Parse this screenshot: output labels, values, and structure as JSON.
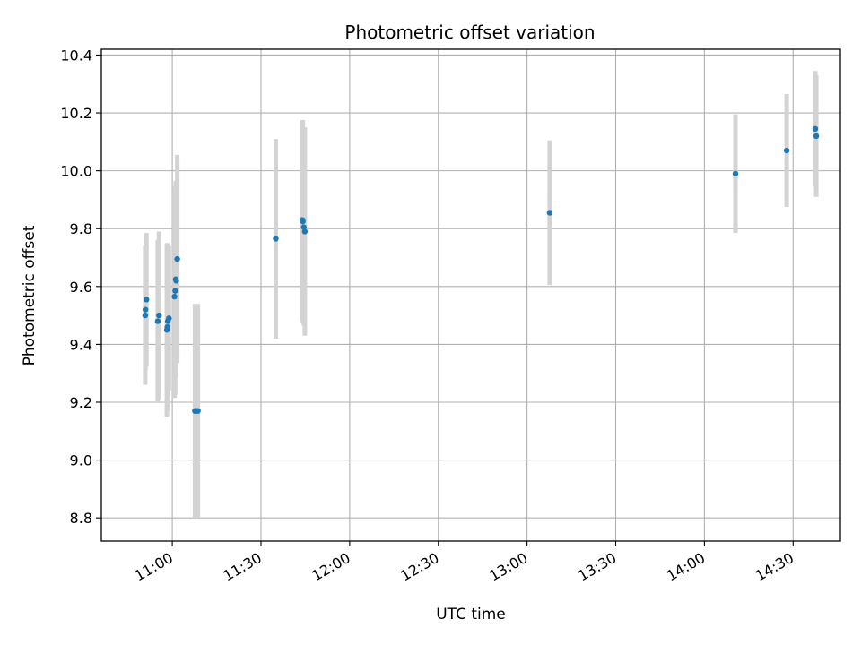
{
  "chart_data": {
    "type": "scatter",
    "title": "Photometric offset variation",
    "xlabel": "UTC time",
    "ylabel": "Photometric offset",
    "grid": true,
    "xlim": [
      "10:36",
      "14:46"
    ],
    "ylim": [
      8.72,
      10.42
    ],
    "x_ticks": [
      "11:00",
      "11:30",
      "12:00",
      "12:30",
      "13:00",
      "13:30",
      "14:00",
      "14:30"
    ],
    "y_ticks": [
      "8.8",
      "9.0",
      "9.2",
      "9.4",
      "9.6",
      "9.8",
      "10.0",
      "10.2",
      "10.4"
    ],
    "x_tick_values": [
      "11:00",
      "11:30",
      "12:00",
      "12:30",
      "13:00",
      "13:30",
      "14:00",
      "14:30"
    ],
    "y_tick_values": [
      8.8,
      9.0,
      9.2,
      9.4,
      9.6,
      9.8,
      10.0,
      10.2,
      10.4
    ],
    "marker_color": "#1f77b4",
    "errorbar_color": "#d3d3d3",
    "points": [
      {
        "x": "10:50:50",
        "y": 9.5,
        "yerr": 0.24
      },
      {
        "x": "10:50:55",
        "y": 9.52,
        "yerr": 0.21
      },
      {
        "x": "10:51:15",
        "y": 9.555,
        "yerr": 0.23
      },
      {
        "x": "10:55:05",
        "y": 9.48,
        "yerr": 0.28
      },
      {
        "x": "10:55:30",
        "y": 9.5,
        "yerr": 0.29
      },
      {
        "x": "10:58:10",
        "y": 9.45,
        "yerr": 0.3
      },
      {
        "x": "10:58:20",
        "y": 9.46,
        "yerr": 0.29
      },
      {
        "x": "10:58:30",
        "y": 9.48,
        "yerr": 0.26
      },
      {
        "x": "10:58:50",
        "y": 9.49,
        "yerr": 0.25
      },
      {
        "x": "11:00:45",
        "y": 9.565,
        "yerr": 0.35
      },
      {
        "x": "11:01:00",
        "y": 9.585,
        "yerr": 0.36
      },
      {
        "x": "11:01:10",
        "y": 9.625,
        "yerr": 0.34
      },
      {
        "x": "11:01:20",
        "y": 9.62,
        "yerr": 0.28
      },
      {
        "x": "11:01:40",
        "y": 9.695,
        "yerr": 0.36
      },
      {
        "x": "11:07:40",
        "y": 9.17,
        "yerr": 0.37
      },
      {
        "x": "11:08:00",
        "y": 9.17,
        "yerr": 0.36
      },
      {
        "x": "11:08:40",
        "y": 9.17,
        "yerr": 0.37
      },
      {
        "x": "11:35:00",
        "y": 9.765,
        "yerr": 0.345
      },
      {
        "x": "11:44:00",
        "y": 9.83,
        "yerr": 0.345
      },
      {
        "x": "11:44:10",
        "y": 9.825,
        "yerr": 0.35
      },
      {
        "x": "11:44:30",
        "y": 9.805,
        "yerr": 0.34
      },
      {
        "x": "11:44:50",
        "y": 9.79,
        "yerr": 0.36
      },
      {
        "x": "13:07:40",
        "y": 9.855,
        "yerr": 0.25
      },
      {
        "x": "14:10:30",
        "y": 9.99,
        "yerr": 0.205
      },
      {
        "x": "14:27:50",
        "y": 10.07,
        "yerr": 0.195
      },
      {
        "x": "14:37:30",
        "y": 10.145,
        "yerr": 0.2
      },
      {
        "x": "14:37:50",
        "y": 10.12,
        "yerr": 0.21
      }
    ]
  }
}
